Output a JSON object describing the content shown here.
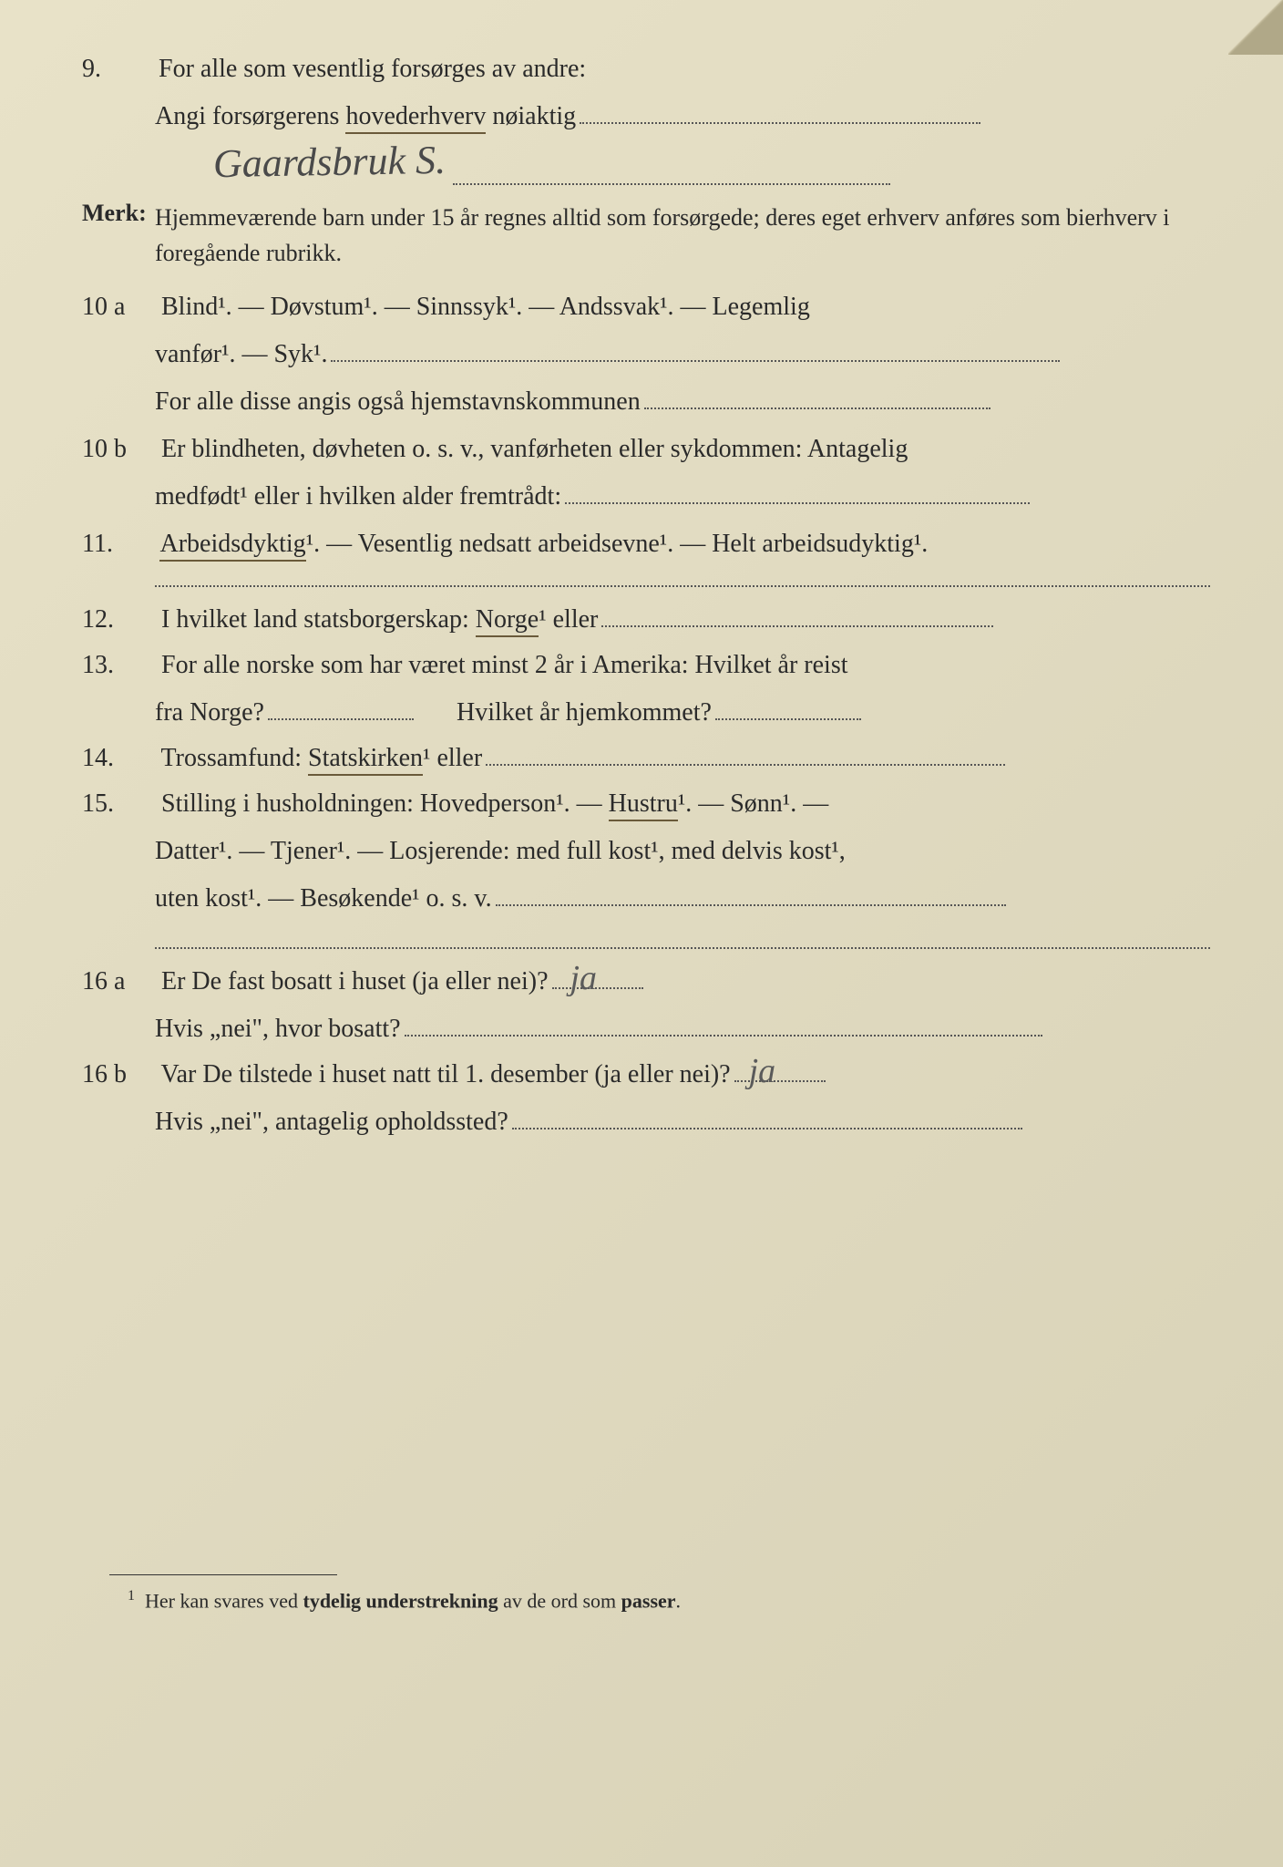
{
  "q9": {
    "num": "9.",
    "text": "For alle som vesentlig forsørges av andre:",
    "sub1_pre": "Angi forsørgerens ",
    "sub1_underlined": "hovederhverv",
    "sub1_post": " nøiaktig",
    "handwritten": "Gaardsbruk   S."
  },
  "merk": {
    "label": "Merk:",
    "text": "Hjemmeværende barn under 15 år regnes alltid som forsørgede; deres eget erhverv anføres som bierhverv i foregående rubrikk."
  },
  "q10a": {
    "num": "10 a",
    "line1": "Blind¹.  —  Døvstum¹.  —  Sinnssyk¹.  —  Andssvak¹.  —  Legemlig",
    "line2_pre": "vanfør¹.  —  Syk¹.",
    "line3": "For alle disse angis også hjemstavnskommunen"
  },
  "q10b": {
    "num": "10 b",
    "line1": "Er blindheten, døvheten o. s. v., vanførheten eller sykdommen: Antagelig",
    "line2": "medfødt¹ eller i hvilken alder fremtrådt:"
  },
  "q11": {
    "num": "11.",
    "underlined": "Arbeidsdyktig",
    "post": "¹. — Vesentlig nedsatt arbeidsevne¹. — Helt arbeidsudyktig¹."
  },
  "q12": {
    "num": "12.",
    "pre": "I hvilket land statsborgerskap: ",
    "underlined": "Norge",
    "post": "¹ eller"
  },
  "q13": {
    "num": "13.",
    "line1": "For alle norske som har været minst 2 år i Amerika: Hvilket år reist",
    "line2_a": "fra Norge?",
    "line2_b": "Hvilket år hjemkommet?"
  },
  "q14": {
    "num": "14.",
    "pre": "Trossamfund:  ",
    "underlined": "Statskirken",
    "post": "¹ eller"
  },
  "q15": {
    "num": "15.",
    "line1_pre": "Stilling i husholdningen:  Hovedperson¹.  —  ",
    "line1_underlined": "Hustru",
    "line1_post": "¹.  —  Sønn¹.  —",
    "line2": "Datter¹.  —  Tjener¹.  — Losjerende:  med full kost¹, med delvis kost¹,",
    "line3": "uten kost¹.  —  Besøkende¹ o. s. v."
  },
  "q16a": {
    "num": "16 a",
    "line1": "Er De fast bosatt i huset (ja eller nei)?",
    "hand1": "ja",
    "line2": "Hvis „nei\", hvor bosatt?"
  },
  "q16b": {
    "num": "16 b",
    "line1": "Var De tilstede i huset natt til 1. desember (ja eller nei)?",
    "hand1": "ja",
    "line2": "Hvis „nei\", antagelig opholdssted?"
  },
  "footnote": {
    "num": "1",
    "text": "Her kan svares ved tydelig understrekning av de ord som passer."
  },
  "colors": {
    "paper_bg": "#e0dac0",
    "text": "#2a2a2a",
    "underline": "#6a5a3a",
    "handwriting": "#4a4a4a"
  }
}
